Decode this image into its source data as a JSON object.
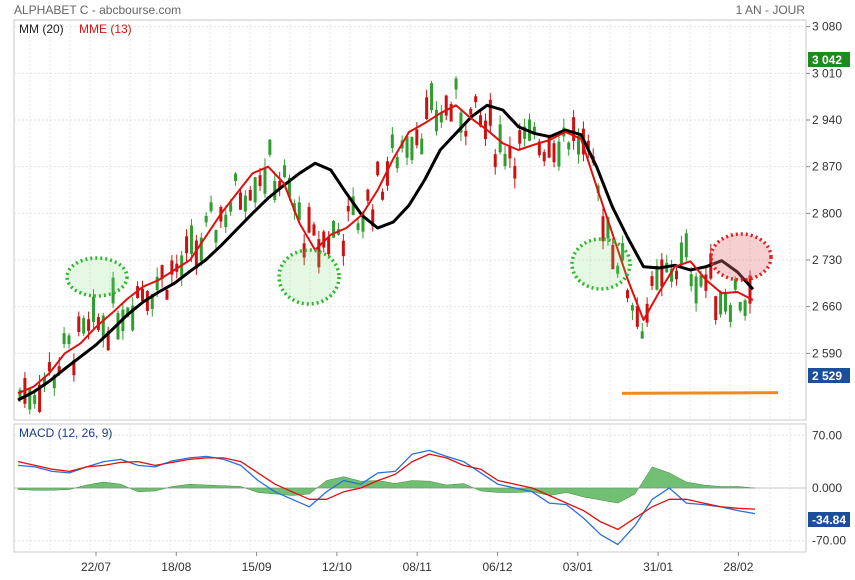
{
  "header": {
    "title": "ALPHABET C - abcbourse.com",
    "period": "1 AN - JOUR"
  },
  "chart_data": [
    {
      "type": "candlestick",
      "title": "ALPHABET C",
      "legend": [
        "MM (20)",
        "MME (13)"
      ],
      "x_tick_labels": [
        "22/07",
        "18/08",
        "15/09",
        "12/10",
        "08/11",
        "06/12",
        "03/01",
        "31/01",
        "28/02"
      ],
      "y_tick_labels": [
        3080,
        3010,
        2940,
        2870,
        2800,
        2730,
        2660,
        2590
      ],
      "ylim": [
        2490,
        3090
      ],
      "last_price_label": "3 042",
      "current_price_label": "2 529",
      "colors": {
        "up": "#2f9e2f",
        "down": "#cc1111",
        "mm": "#000000",
        "mme": "#e01010",
        "support": "#f28a1a",
        "last_high": "#1f8a1f",
        "current": "#1b4f9c"
      },
      "series": [
        {
          "name": "MM (20)",
          "values": [
            2520,
            2532,
            2548,
            2567,
            2585,
            2603,
            2625,
            2648,
            2667,
            2682,
            2695,
            2713,
            2730,
            2752,
            2776,
            2800,
            2823,
            2842,
            2860,
            2875,
            2865,
            2830,
            2797,
            2778,
            2787,
            2812,
            2850,
            2895,
            2920,
            2945,
            2962,
            2955,
            2930,
            2920,
            2915,
            2925,
            2918,
            2870,
            2810,
            2763,
            2720,
            2718,
            2722,
            2715,
            2720,
            2729,
            2712,
            2686
          ]
        },
        {
          "name": "MME (13)",
          "values": [
            2530,
            2540,
            2560,
            2590,
            2605,
            2630,
            2650,
            2672,
            2690,
            2700,
            2715,
            2730,
            2765,
            2800,
            2830,
            2860,
            2870,
            2845,
            2785,
            2745,
            2768,
            2778,
            2798,
            2835,
            2882,
            2922,
            2935,
            2950,
            2962,
            2942,
            2925,
            2905,
            2895,
            2903,
            2910,
            2922,
            2912,
            2840,
            2770,
            2700,
            2640,
            2682,
            2720,
            2728,
            2700,
            2680,
            2682,
            2670
          ]
        },
        {
          "name": "support",
          "values": [
            2530,
            2531
          ]
        }
      ]
    },
    {
      "type": "bar",
      "title": "MACD (12, 26, 9)",
      "y_tick_labels": [
        70.0,
        0.0,
        -70.0
      ],
      "ylim": [
        -85,
        85
      ],
      "value_labels": [
        "-34.84"
      ],
      "series": [
        {
          "name": "MACD",
          "values": [
            30,
            28,
            22,
            20,
            28,
            35,
            38,
            30,
            28,
            36,
            40,
            42,
            38,
            30,
            10,
            -5,
            -15,
            -25,
            -5,
            10,
            5,
            20,
            22,
            45,
            50,
            42,
            35,
            20,
            5,
            0,
            -5,
            -20,
            -22,
            -40,
            -62,
            -75,
            -50,
            -15,
            0,
            -20,
            -22,
            -25,
            -30,
            -34
          ]
        },
        {
          "name": "Signal",
          "values": [
            35,
            30,
            25,
            22,
            28,
            30,
            34,
            35,
            30,
            34,
            38,
            40,
            40,
            35,
            20,
            5,
            -5,
            -15,
            -15,
            -5,
            0,
            10,
            18,
            35,
            45,
            40,
            30,
            25,
            10,
            5,
            0,
            -10,
            -20,
            -30,
            -45,
            -55,
            -40,
            -25,
            -15,
            -15,
            -20,
            -25,
            -27,
            -28
          ]
        },
        {
          "name": "Histogram",
          "values": [
            -2,
            -3,
            -3,
            -2,
            4,
            8,
            5,
            -5,
            -4,
            2,
            5,
            4,
            3,
            2,
            -6,
            -8,
            -10,
            -8,
            10,
            15,
            9,
            10,
            6,
            10,
            9,
            4,
            6,
            -4,
            -6,
            -6,
            -5,
            -10,
            -6,
            -12,
            -16,
            -20,
            -8,
            28,
            20,
            8,
            4,
            2,
            2,
            0
          ]
        }
      ]
    }
  ]
}
